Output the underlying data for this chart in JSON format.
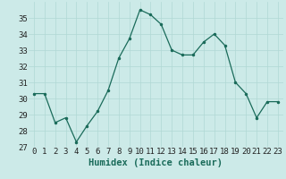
{
  "x": [
    0,
    1,
    2,
    3,
    4,
    5,
    6,
    7,
    8,
    9,
    10,
    11,
    12,
    13,
    14,
    15,
    16,
    17,
    18,
    19,
    20,
    21,
    22,
    23
  ],
  "y": [
    30.3,
    30.3,
    28.5,
    28.8,
    27.3,
    28.3,
    29.2,
    30.5,
    32.5,
    33.7,
    35.5,
    35.2,
    34.6,
    33.0,
    32.7,
    32.7,
    33.5,
    34.0,
    33.3,
    31.0,
    30.3,
    28.8,
    29.8,
    29.8
  ],
  "line_color": "#1a6b5a",
  "marker_color": "#1a6b5a",
  "bg_color": "#cceae8",
  "grid_color": "#b0d8d4",
  "xlabel": "Humidex (Indice chaleur)",
  "ylim": [
    27,
    36
  ],
  "xlim": [
    -0.5,
    23.5
  ],
  "yticks": [
    27,
    28,
    29,
    30,
    31,
    32,
    33,
    34,
    35
  ],
  "xticks": [
    0,
    1,
    2,
    3,
    4,
    5,
    6,
    7,
    8,
    9,
    10,
    11,
    12,
    13,
    14,
    15,
    16,
    17,
    18,
    19,
    20,
    21,
    22,
    23
  ],
  "label_fontsize": 7.5,
  "tick_fontsize": 6.5
}
